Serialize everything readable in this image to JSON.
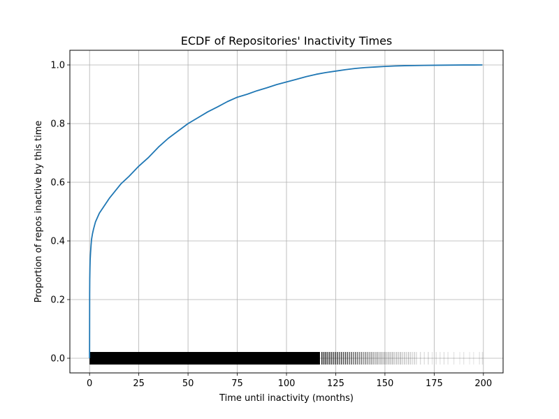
{
  "chart_data": {
    "type": "line",
    "title": "ECDF of Repositories' Inactivity Times",
    "xlabel": "Time until inactivity (months)",
    "ylabel": "Proportion of repos inactive by this time",
    "xlim": [
      -10,
      210
    ],
    "ylim": [
      -0.05,
      1.05
    ],
    "xticks": [
      0,
      25,
      50,
      75,
      100,
      125,
      150,
      175,
      200
    ],
    "xtick_labels": [
      "0",
      "25",
      "50",
      "75",
      "100",
      "125",
      "150",
      "175",
      "200"
    ],
    "yticks": [
      0.0,
      0.2,
      0.4,
      0.6,
      0.8,
      1.0
    ],
    "ytick_labels": [
      "0.0",
      "0.2",
      "0.4",
      "0.6",
      "0.8",
      "1.0"
    ],
    "grid": true,
    "series": [
      {
        "color": "#1f77b4",
        "x": [
          0,
          0.05,
          0.1,
          0.2,
          0.3,
          0.5,
          0.75,
          1,
          1.5,
          2,
          3,
          4,
          5,
          7,
          10,
          13,
          16,
          20,
          25,
          30,
          35,
          40,
          45,
          50,
          55,
          60,
          65,
          70,
          75,
          80,
          85,
          90,
          95,
          100,
          105,
          110,
          115,
          120,
          125,
          130,
          135,
          140,
          145,
          150,
          155,
          160,
          165,
          170,
          175,
          180,
          185,
          190,
          195,
          199.5
        ],
        "y": [
          0.0,
          0.22,
          0.27,
          0.31,
          0.335,
          0.36,
          0.385,
          0.405,
          0.425,
          0.44,
          0.465,
          0.48,
          0.495,
          0.515,
          0.545,
          0.57,
          0.595,
          0.62,
          0.655,
          0.685,
          0.72,
          0.75,
          0.775,
          0.8,
          0.82,
          0.84,
          0.857,
          0.875,
          0.89,
          0.9,
          0.912,
          0.922,
          0.933,
          0.942,
          0.951,
          0.96,
          0.968,
          0.974,
          0.979,
          0.984,
          0.988,
          0.991,
          0.993,
          0.995,
          0.9965,
          0.9975,
          0.998,
          0.9985,
          0.999,
          0.9993,
          0.9996,
          0.9998,
          0.9999,
          1.0
        ]
      }
    ],
    "rug": {
      "y": 0.0,
      "color": "#000000",
      "dense_until": 117,
      "sparse_x": [
        118,
        119,
        120,
        121,
        122,
        123,
        124,
        125,
        126,
        127,
        128,
        129,
        130,
        131,
        132,
        133,
        134,
        135,
        136,
        137,
        138,
        139,
        140,
        141,
        142,
        143,
        144,
        145,
        146,
        147,
        148,
        149,
        150,
        151,
        152,
        153,
        154,
        155,
        156,
        157,
        158,
        159,
        160,
        161,
        162,
        163,
        164,
        165,
        166,
        168,
        170,
        172,
        174,
        176,
        178,
        180,
        182,
        185,
        188,
        190,
        193,
        195,
        198,
        199.5
      ],
      "sparse_opacity": [
        0.95,
        0.9,
        0.95,
        0.85,
        0.9,
        0.85,
        0.8,
        0.85,
        0.8,
        0.75,
        0.8,
        0.7,
        0.75,
        0.7,
        0.65,
        0.7,
        0.6,
        0.65,
        0.6,
        0.55,
        0.6,
        0.5,
        0.55,
        0.5,
        0.45,
        0.5,
        0.45,
        0.4,
        0.45,
        0.35,
        0.4,
        0.35,
        0.4,
        0.3,
        0.35,
        0.3,
        0.35,
        0.25,
        0.3,
        0.25,
        0.3,
        0.2,
        0.25,
        0.2,
        0.25,
        0.2,
        0.15,
        0.2,
        0.15,
        0.15,
        0.12,
        0.15,
        0.1,
        0.12,
        0.1,
        0.12,
        0.1,
        0.1,
        0.08,
        0.1,
        0.08,
        0.08,
        0.1,
        0.12
      ]
    }
  }
}
